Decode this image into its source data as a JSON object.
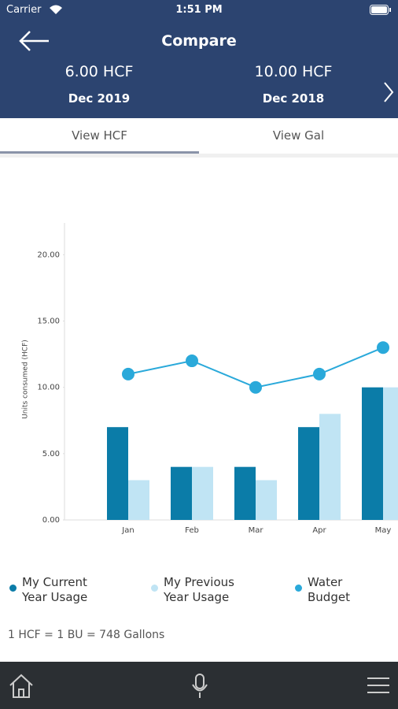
{
  "status_bar": {
    "carrier": "Carrier",
    "time": "1:51 PM"
  },
  "header": {
    "title": "Compare",
    "current": {
      "amount": "6.00 HCF",
      "period": "Dec 2019"
    },
    "previous": {
      "amount": "10.00 HCF",
      "period": "Dec 2018"
    }
  },
  "tabs": [
    "View HCF",
    "View Gal"
  ],
  "chart_data": {
    "type": "bar",
    "y_label": "Units consumed (HCF)",
    "categories": [
      "Jan",
      "Feb",
      "Mar",
      "Apr",
      "May"
    ],
    "series": [
      {
        "name": "My Current Year Usage",
        "type": "bar",
        "color": "#0b7ca8",
        "values": [
          7,
          4,
          4,
          7,
          10
        ]
      },
      {
        "name": "My Previous Year Usage",
        "type": "bar",
        "color": "#c0e4f4",
        "values": [
          3,
          4,
          3,
          8,
          10
        ]
      },
      {
        "name": "Water Budget",
        "type": "line",
        "color": "#2aa9da",
        "values": [
          11,
          12,
          10,
          11,
          13
        ]
      }
    ],
    "ylim": [
      0,
      22.4
    ],
    "yticks": [
      {
        "value": 0,
        "label": "0.00"
      },
      {
        "value": 5,
        "label": "5.00"
      },
      {
        "value": 10,
        "label": "10.00"
      },
      {
        "value": 15,
        "label": "15.00"
      },
      {
        "value": 20,
        "label": "20.00"
      }
    ],
    "grid": false
  },
  "footnote": "1 HCF = 1 BU = 748 Gallons"
}
